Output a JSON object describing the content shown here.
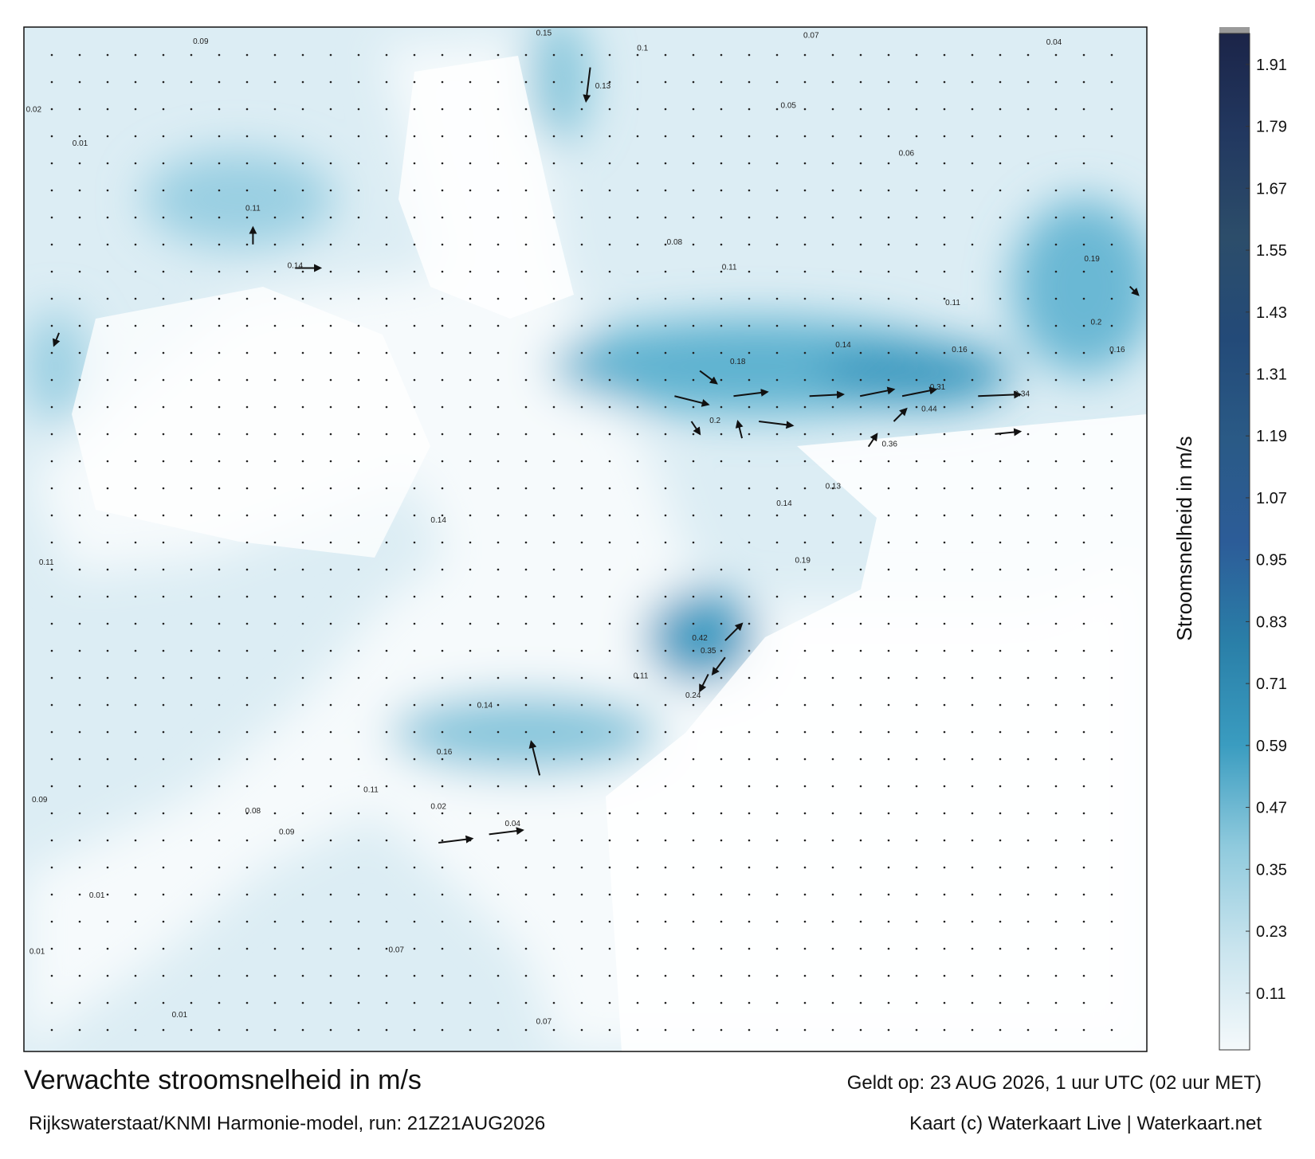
{
  "chart_data": {
    "type": "map",
    "title": "Verwachte stroomsnelheid in m/s",
    "valid_time": "Geldt op: 23 AUG 2026, 1 uur UTC (02 uur MET)",
    "source": "Rijkswaterstaat/KNMI Harmonie-model, run: 21Z21AUG2026",
    "credit": "Kaart (c) Waterkaart Live | Waterkaart.net",
    "colorbar_label": "Stroomsnelheid in m/s",
    "ylim": [
      0,
      1.97
    ],
    "yticks": [
      0.11,
      0.23,
      0.35,
      0.47,
      0.59,
      0.71,
      0.83,
      0.95,
      1.07,
      1.19,
      1.31,
      1.43,
      1.55,
      1.67,
      1.79,
      1.91
    ],
    "colors": [
      "#f4f9fb",
      "#c9e4ee",
      "#8fcadd",
      "#3a9cc0",
      "#2a7fa8",
      "#2c5c98",
      "#2a5a86",
      "#234a78",
      "#2c4d6a",
      "#223860",
      "#1b2448"
    ],
    "map_labels": [
      0.15,
      0.1,
      0.07,
      0.04,
      0.09,
      0.13,
      0.05,
      0.06,
      0.08,
      0.11,
      0.11,
      0.14,
      0.16,
      0.18,
      0.2,
      0.44,
      0.31,
      0.34,
      0.36,
      0.13,
      0.14,
      0.19,
      0.42,
      0.35,
      0.24,
      0.11,
      0.14,
      0.16,
      0.11,
      0.02,
      0.04,
      0.08,
      0.09,
      0.01,
      0.07,
      0.07,
      0.01,
      0.01,
      0.09,
      0.11,
      0.01,
      0.02,
      0.19,
      0.2,
      0.16,
      0.11,
      0.14,
      0.14
    ]
  }
}
